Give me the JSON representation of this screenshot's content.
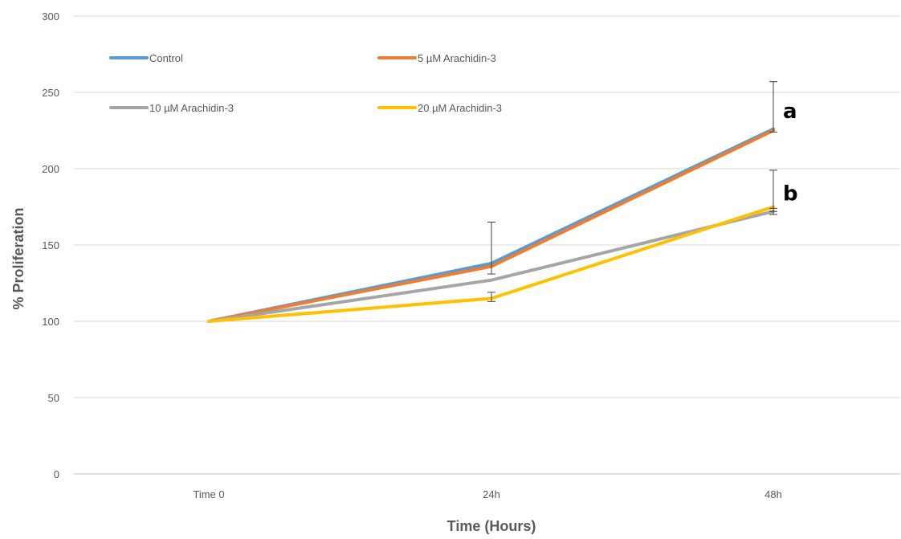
{
  "chart_data": {
    "type": "line",
    "title": "",
    "xlabel": "Time (Hours)",
    "ylabel": "% Proliferation",
    "categories": [
      "Time 0",
      "24h",
      "48h"
    ],
    "ylim": [
      0,
      300
    ],
    "yticks": [
      0,
      50,
      100,
      150,
      200,
      250,
      300
    ],
    "grid": "horizontal",
    "legend_position": "top-left, inside plot",
    "series": [
      {
        "name": "Control",
        "color": "#5b9bd5",
        "values": [
          100,
          138,
          226
        ]
      },
      {
        "name": "5 µM Arachidin-3",
        "color": "#ed7d31",
        "values": [
          100,
          136,
          225
        ]
      },
      {
        "name": "10 µM Arachidin-3",
        "color": "#a5a5a5",
        "values": [
          100,
          127,
          172
        ]
      },
      {
        "name": "20 µM Arachidin-3",
        "color": "#ffc000",
        "values": [
          100,
          115,
          175
        ]
      }
    ],
    "error_bars": [
      {
        "category": "24h",
        "center": 138,
        "low": 131,
        "high": 165
      },
      {
        "category": "24h",
        "center": 115,
        "low": 113,
        "high": 119
      },
      {
        "category": "48h",
        "center": 226,
        "low": 224,
        "high": 257
      },
      {
        "category": "48h",
        "center": 175,
        "low": 172,
        "high": 199
      },
      {
        "category": "48h",
        "center": 172,
        "low": 170,
        "high": 174
      }
    ],
    "annotations": [
      {
        "text": "a",
        "category": "48h",
        "y": 238
      },
      {
        "text": "b",
        "category": "48h",
        "y": 184
      }
    ]
  }
}
